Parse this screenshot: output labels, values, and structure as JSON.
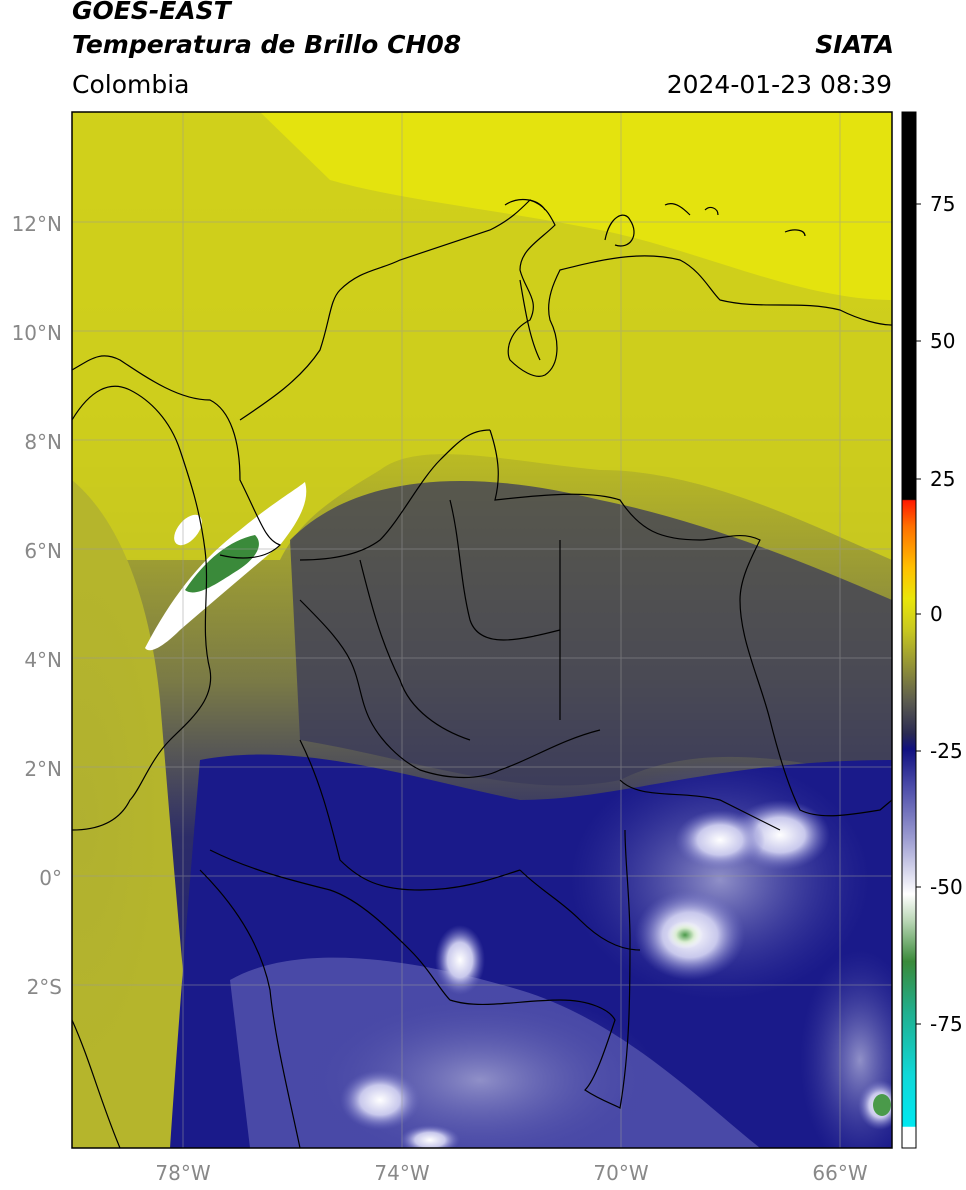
{
  "header": {
    "satellite": "GOES-EAST",
    "product": "Temperatura de Brillo CH08",
    "brand": "SIATA",
    "region": "Colombia",
    "datetime": "2024-01-23 08:39"
  },
  "map": {
    "latitude_labels": [
      "12°N",
      "10°N",
      "8°N",
      "6°N",
      "4°N",
      "2°N",
      "0°",
      "2°S"
    ],
    "longitude_labels": [
      "78°W",
      "74°W",
      "70°W",
      "66°W"
    ],
    "lon_range": [
      -80,
      -65
    ],
    "lat_range": [
      -5,
      14
    ],
    "gridlines": true
  },
  "colorbar": {
    "tick_labels": [
      "75",
      "50",
      "25",
      "0",
      "-25",
      "-50",
      "-75"
    ],
    "range": [
      -95,
      90
    ],
    "colors": {
      "black": "#000000",
      "red": "#ff1a00",
      "orange": "#ff9a00",
      "yellow": "#e9e60a",
      "olive": "#8a8a3a",
      "dark": "#2a2a52",
      "navy": "#101080",
      "lavender": "#9a9ad0",
      "white": "#ffffff",
      "green": "#3a8a3a",
      "teal": "#20d0b0",
      "cyan": "#00e8f0"
    }
  }
}
